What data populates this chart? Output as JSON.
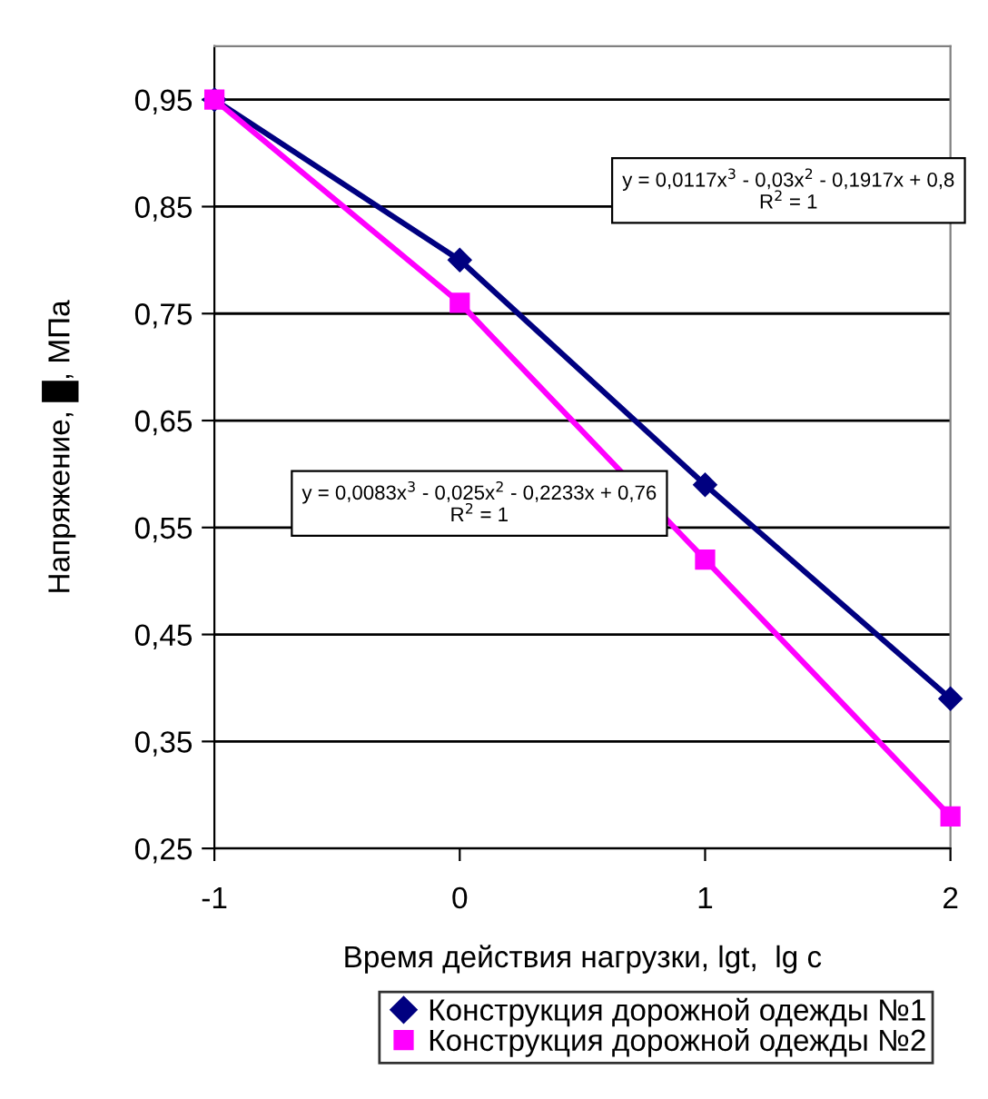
{
  "chart_data": {
    "type": "line",
    "xlabel": "Время действия нагрузки, lgt,  lg c",
    "ylabel": "Напряжение, █, МПа",
    "x": [
      -1,
      0,
      1,
      2
    ],
    "series": [
      {
        "name": "Конструкция дорожной одежды №1",
        "color": "#000080",
        "marker": "diamond",
        "values": [
          0.95,
          0.8,
          0.59,
          0.39
        ]
      },
      {
        "name": "Конструкция дорожной одежды №2",
        "color": "#ff00ff",
        "marker": "square",
        "values": [
          0.95,
          0.76,
          0.52,
          0.28
        ]
      }
    ],
    "annotations": [
      "y = 0,0117x$^{3}$ - 0,03x$^{2}$ - 0,1917x + 0,8\nR$^{2}$ = 1",
      "y = 0,0083x$^{3}$ - 0,025x$^{2}$ - 0,2233x + 0,76\nR$^{2}$ = 1"
    ],
    "xlim": [
      -1,
      2
    ],
    "xticks": [
      -1,
      0,
      1,
      2
    ],
    "ylim": [
      0.25,
      1.0
    ],
    "yticks": [
      {
        "value": 0.25,
        "label": "0,25"
      },
      {
        "value": 0.35,
        "label": "0,35"
      },
      {
        "value": 0.45,
        "label": "0,45"
      },
      {
        "value": 0.55,
        "label": "0,55"
      },
      {
        "value": 0.65,
        "label": "0,65"
      },
      {
        "value": 0.75,
        "label": "0,75"
      },
      {
        "value": 0.85,
        "label": "0,85"
      },
      {
        "value": 0.95,
        "label": "0,95"
      }
    ],
    "grid": "y",
    "legend": "bottom"
  }
}
